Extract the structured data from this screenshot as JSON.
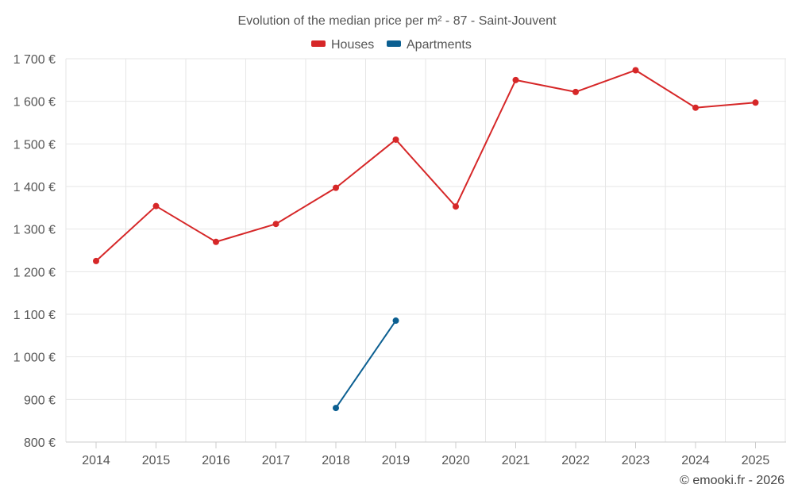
{
  "chart_data": {
    "type": "line",
    "title": "Evolution of the median price per m² - 87 - Saint-Jouvent",
    "categories": [
      "2014",
      "2015",
      "2016",
      "2017",
      "2018",
      "2019",
      "2020",
      "2021",
      "2022",
      "2023",
      "2024",
      "2025"
    ],
    "series": [
      {
        "name": "Houses",
        "color": "#d62728",
        "values": [
          1225,
          1354,
          1270,
          1312,
          1397,
          1510,
          1353,
          1650,
          1622,
          1673,
          1585,
          1597
        ]
      },
      {
        "name": "Apartments",
        "color": "#0b5f91",
        "values": [
          null,
          null,
          null,
          null,
          880,
          1085,
          null,
          null,
          null,
          null,
          null,
          null
        ]
      }
    ],
    "yticks": [
      800,
      900,
      1000,
      1100,
      1200,
      1300,
      1400,
      1500,
      1600,
      1700
    ],
    "ytick_labels": [
      "800 €",
      "900 €",
      "1 000 €",
      "1 100 €",
      "1 200 €",
      "1 300 €",
      "1 400 €",
      "1 500 €",
      "1 600 €",
      "1 700 €"
    ],
    "ylim": [
      800,
      1700
    ],
    "xlabel": "",
    "ylabel": "",
    "legend_position": "top-center",
    "grid": true
  },
  "credit": "© emooki.fr - 2026"
}
